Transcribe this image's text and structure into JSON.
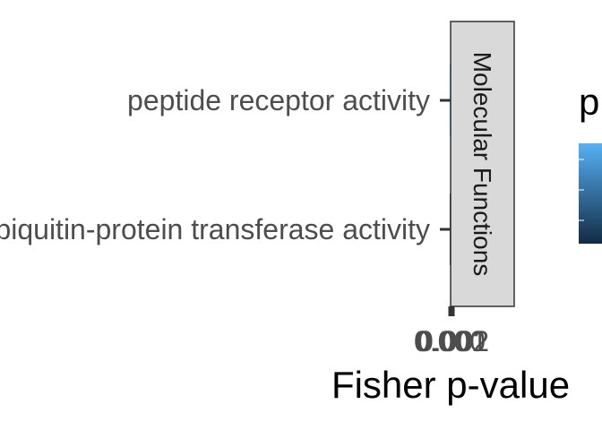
{
  "chart_data": {
    "type": "bar",
    "orientation": "horizontal",
    "categories": [
      "peptide receptor activity",
      "ubiquitin-protein transferase activity"
    ],
    "values": [
      0.001,
      0.001
    ],
    "facet_label": "Molecular Functions",
    "xlabel": "Fisher p-value",
    "ylabel": "",
    "x_tick_labels": [
      "0.000",
      "0.001",
      "0.002"
    ],
    "legend": {
      "title": "p",
      "placement": "right",
      "colormap": "blues",
      "colors": [
        "#56B1F7",
        "#132B43"
      ]
    },
    "grid": false
  }
}
